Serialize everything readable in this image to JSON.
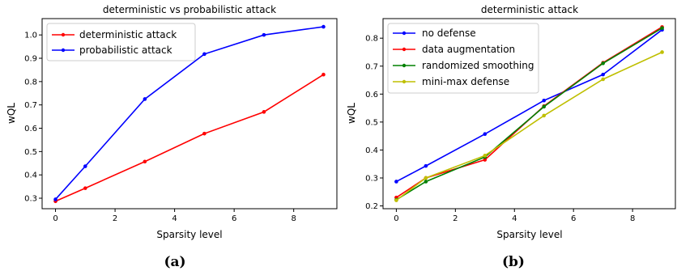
{
  "chart_data": [
    {
      "type": "line",
      "caption": "(a)",
      "title": "deterministic vs probabilistic attack",
      "xlabel": "Sparsity level",
      "ylabel": "wQL",
      "xlim": [
        -0.45,
        9.45
      ],
      "ylim": [
        0.255,
        1.07
      ],
      "xticks": [
        0,
        2,
        4,
        6,
        8
      ],
      "yticks": [
        0.3,
        0.4,
        0.5,
        0.6,
        0.7,
        0.8,
        0.9,
        1.0
      ],
      "ytick_labels": [
        "0.3",
        "0.4",
        "0.5",
        "0.6",
        "0.7",
        "0.8",
        "0.9",
        "1.0"
      ],
      "grid": false,
      "legend_position": "top-left",
      "x": [
        0,
        1,
        3,
        5,
        7,
        9
      ],
      "series": [
        {
          "name": "deterministic attack",
          "color": "#ff0000",
          "values": [
            0.287,
            0.343,
            0.457,
            0.577,
            0.67,
            0.83
          ]
        },
        {
          "name": "probabilistic attack",
          "color": "#0000ff",
          "values": [
            0.295,
            0.437,
            0.725,
            0.918,
            1.0,
            1.035
          ]
        }
      ]
    },
    {
      "type": "line",
      "caption": "(b)",
      "title": "deterministic attack",
      "xlabel": "Sparsity level",
      "ylabel": "wQL",
      "xlim": [
        -0.45,
        9.45
      ],
      "ylim": [
        0.19,
        0.87
      ],
      "xticks": [
        0,
        2,
        4,
        6,
        8
      ],
      "yticks": [
        0.2,
        0.3,
        0.4,
        0.5,
        0.6,
        0.7,
        0.8
      ],
      "ytick_labels": [
        "0.2",
        "0.3",
        "0.4",
        "0.5",
        "0.6",
        "0.7",
        "0.8"
      ],
      "grid": false,
      "legend_position": "top-left",
      "x": [
        0,
        1,
        3,
        5,
        7,
        9
      ],
      "series": [
        {
          "name": "no defense",
          "color": "#0000ff",
          "values": [
            0.287,
            0.343,
            0.457,
            0.577,
            0.67,
            0.83
          ]
        },
        {
          "name": "data augmentation",
          "color": "#ff0000",
          "values": [
            0.23,
            0.3,
            0.365,
            0.557,
            0.712,
            0.84
          ]
        },
        {
          "name": "randomized smoothing",
          "color": "#008000",
          "values": [
            0.222,
            0.287,
            0.375,
            0.555,
            0.71,
            0.836
          ]
        },
        {
          "name": "mini-max defense",
          "color": "#bfbf00",
          "values": [
            0.22,
            0.3,
            0.38,
            0.523,
            0.653,
            0.75
          ]
        }
      ]
    }
  ]
}
